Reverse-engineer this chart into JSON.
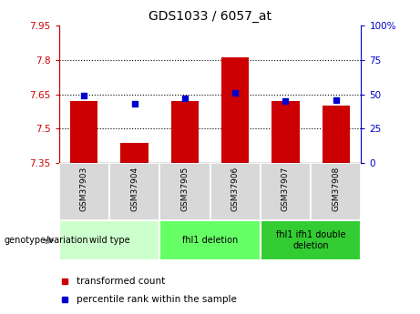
{
  "title": "GDS1033 / 6057_at",
  "samples": [
    "GSM37903",
    "GSM37904",
    "GSM37905",
    "GSM37906",
    "GSM37907",
    "GSM37908"
  ],
  "bar_values": [
    7.62,
    7.44,
    7.62,
    7.81,
    7.62,
    7.6
  ],
  "percentile_values": [
    49,
    43,
    47,
    51,
    45,
    46
  ],
  "y_min": 7.35,
  "y_max": 7.95,
  "y_ticks": [
    7.35,
    7.5,
    7.65,
    7.8,
    7.95
  ],
  "y_tick_labels": [
    "7.35",
    "7.5",
    "7.65",
    "7.8",
    "7.95"
  ],
  "y2_ticks": [
    0,
    25,
    50,
    75,
    100
  ],
  "y2_tick_labels": [
    "0",
    "25",
    "50",
    "75",
    "100%"
  ],
  "bar_color": "#CC0000",
  "dot_color": "#0000CC",
  "groups": [
    {
      "label": "wild type",
      "samples": [
        0,
        1
      ],
      "color": "#CCFFCC"
    },
    {
      "label": "fhl1 deletion",
      "samples": [
        2,
        3
      ],
      "color": "#66FF66"
    },
    {
      "label": "fhl1 ifh1 double\ndeletion",
      "samples": [
        4,
        5
      ],
      "color": "#33CC33"
    }
  ],
  "legend_items": [
    {
      "label": "transformed count",
      "color": "#CC0000"
    },
    {
      "label": "percentile rank within the sample",
      "color": "#0000CC"
    }
  ],
  "genotype_label": "genotype/variation",
  "figsize": [
    4.61,
    3.45
  ],
  "dpi": 100
}
